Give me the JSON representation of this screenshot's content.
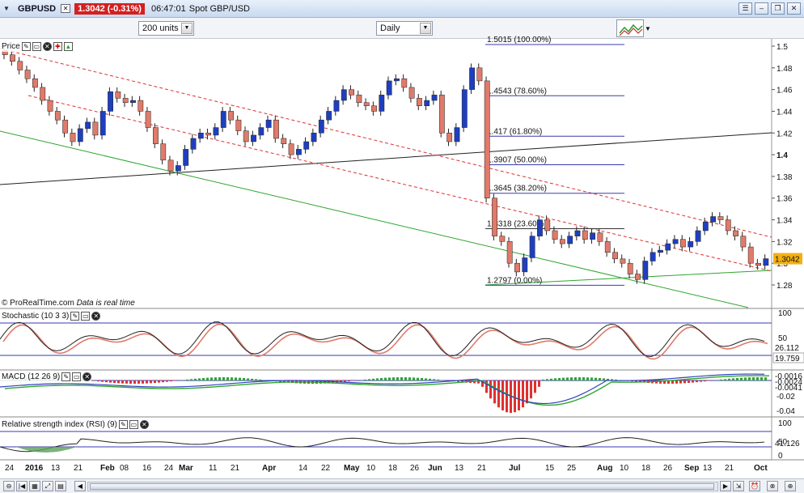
{
  "window": {
    "symbol": "GBPUSD",
    "price_badge": "1.3042 (-0.31%)",
    "clock": "06:47:01",
    "instrument": "Spot GBP/USD"
  },
  "toolbar": {
    "units": "200 units",
    "period": "Daily"
  },
  "panels": {
    "price": "Price",
    "stochastic": "Stochastic (10 3 3)",
    "macd": "MACD (12 26 9)",
    "rsi": "Relative strength index (RSI) (9)"
  },
  "credit": {
    "source": "© ProRealTime.com",
    "note": "Data is real time"
  },
  "price_axis": {
    "ticks": [
      "1.5",
      "1.48",
      "1.46",
      "1.44",
      "1.42",
      "1.4",
      "1.38",
      "1.36",
      "1.34",
      "1.32",
      "1.3",
      "1.28"
    ],
    "current": "1.3042"
  },
  "fibonacci": [
    {
      "label": "1.5015 (100.00%)",
      "value": 1.5015
    },
    {
      "label": "1.4543 (78.60%)",
      "value": 1.4543
    },
    {
      "label": "1.417 (61.80%)",
      "value": 1.417
    },
    {
      "label": "1.3907 (50.00%)",
      "value": 1.3907
    },
    {
      "label": "1.3645 (38.20%)",
      "value": 1.3645
    },
    {
      "label": "1.3318 (23.60%)",
      "value": 1.3318
    },
    {
      "label": "1.2797 (0.00%)",
      "value": 1.2797
    }
  ],
  "stochastic": {
    "axis": [
      "100",
      "50"
    ],
    "k": "26.112",
    "d": "19.759"
  },
  "macd": {
    "axis": [
      "-0.02",
      "-0.04"
    ],
    "val1": "-0.0016",
    "val2": "-0.0024",
    "val3": "-0.0041"
  },
  "rsi": {
    "axis": [
      "100",
      "50",
      "0"
    ],
    "value": "41.126"
  },
  "time_axis": [
    "24",
    "2016",
    "13",
    "21",
    "Feb",
    "08",
    "16",
    "24",
    "Mar",
    "11",
    "21",
    "Apr",
    "14",
    "22",
    "May",
    "10",
    "18",
    "26",
    "Jun",
    "13",
    "21",
    "Jul",
    "15",
    "25",
    "Aug",
    "10",
    "18",
    "26",
    "Sep",
    "13",
    "21",
    "Oct"
  ],
  "colors": {
    "bull": "#1f3fbf",
    "bear": "#e07a6a",
    "price_badge": "#d42020",
    "last_price": "#f5b010",
    "fib": "#3a3ab0",
    "trend_red": "#e03030",
    "trend_green": "#2fa52f"
  },
  "chart_data": {
    "type": "candlestick",
    "instrument": "GBP/USD",
    "period": "Daily",
    "closes": [
      1.492,
      1.486,
      1.478,
      1.47,
      1.462,
      1.45,
      1.44,
      1.432,
      1.42,
      1.412,
      1.424,
      1.43,
      1.418,
      1.44,
      1.458,
      1.452,
      1.448,
      1.45,
      1.44,
      1.425,
      1.41,
      1.395,
      1.385,
      1.39,
      1.405,
      1.415,
      1.42,
      1.418,
      1.425,
      1.44,
      1.432,
      1.422,
      1.412,
      1.418,
      1.425,
      1.432,
      1.415,
      1.41,
      1.4,
      1.405,
      1.412,
      1.42,
      1.432,
      1.44,
      1.45,
      1.46,
      1.455,
      1.448,
      1.445,
      1.44,
      1.455,
      1.468,
      1.47,
      1.462,
      1.452,
      1.445,
      1.45,
      1.455,
      1.42,
      1.412,
      1.425,
      1.46,
      1.48,
      1.468,
      1.36,
      1.325,
      1.32,
      1.3,
      1.292,
      1.305,
      1.325,
      1.34,
      1.33,
      1.322,
      1.318,
      1.325,
      1.33,
      1.322,
      1.328,
      1.32,
      1.31,
      1.304,
      1.3,
      1.29,
      1.285,
      1.302,
      1.31,
      1.312,
      1.318,
      1.322,
      1.315,
      1.32,
      1.33,
      1.338,
      1.343,
      1.34,
      1.33,
      1.325,
      1.315,
      1.3,
      1.298,
      1.3042
    ]
  }
}
